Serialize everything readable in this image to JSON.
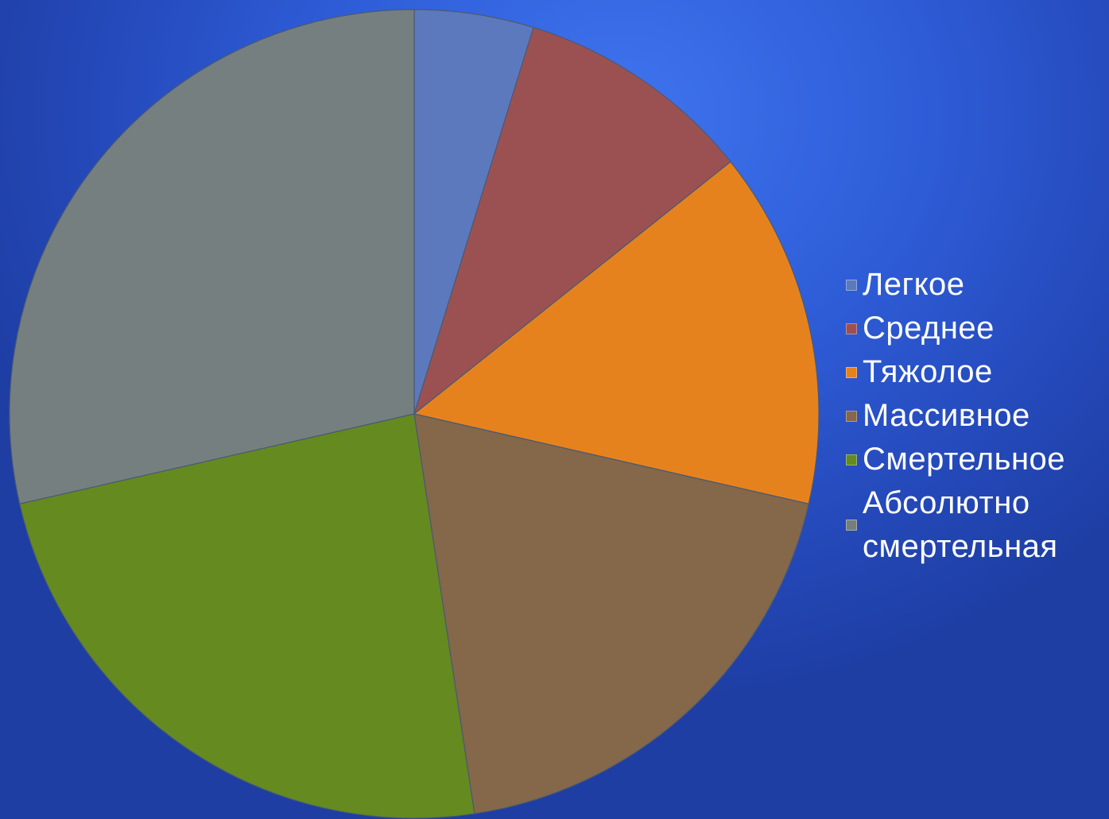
{
  "chart_data": {
    "type": "pie",
    "categories": [
      "Легкое",
      "Среднее",
      "Тяжолое",
      "Массивное",
      "Смертельное",
      "Абсолютно смертельная"
    ],
    "values": [
      5,
      10,
      15,
      20,
      25,
      30
    ],
    "colors": [
      "#5d79be",
      "#9b5152",
      "#e6821e",
      "#85674a",
      "#658a20",
      "#767f80"
    ],
    "legend_position": "right",
    "title": ""
  }
}
